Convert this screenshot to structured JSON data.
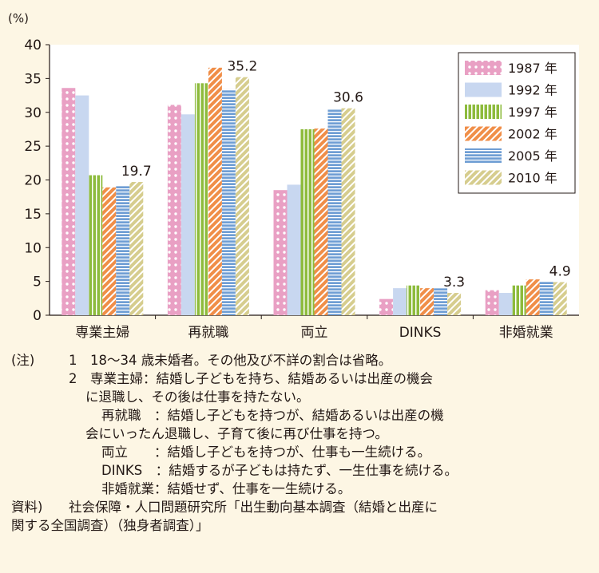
{
  "chart_data": {
    "type": "bar",
    "ylabel": "(%)",
    "ylim": [
      0,
      40
    ],
    "yticks": [
      0,
      5,
      10,
      15,
      20,
      25,
      30,
      35,
      40
    ],
    "grid": false,
    "legend_position": "top-right",
    "categories": [
      "専業主婦",
      "再就職",
      "両立",
      "DINKS",
      "非婚就業"
    ],
    "series": [
      {
        "name": "1987 年",
        "color": "#e9a0c4",
        "pattern": "dots",
        "values": [
          33.6,
          31.1,
          18.5,
          2.4,
          3.7
        ]
      },
      {
        "name": "1992 年",
        "color": "#c8d7f0",
        "pattern": "solid",
        "values": [
          32.5,
          29.7,
          19.3,
          4.0,
          3.3
        ]
      },
      {
        "name": "1997 年",
        "color": "#8dbb3c",
        "pattern": "vstripe",
        "values": [
          20.7,
          34.3,
          27.5,
          4.4,
          4.4
        ]
      },
      {
        "name": "2002 年",
        "color": "#f08e48",
        "pattern": "diag",
        "values": [
          18.9,
          36.6,
          27.6,
          4.0,
          5.3
        ]
      },
      {
        "name": "2005 年",
        "color": "#6f9ed4",
        "pattern": "hstripe",
        "values": [
          19.1,
          33.4,
          30.4,
          4.0,
          5.0
        ]
      },
      {
        "name": "2010 年",
        "color": "#d6cd8e",
        "pattern": "diag",
        "values": [
          19.7,
          35.2,
          30.6,
          3.3,
          4.9
        ]
      }
    ],
    "annotations": [
      {
        "category_index": 0,
        "series_index": 5,
        "text": "19.7"
      },
      {
        "category_index": 1,
        "series_index": 5,
        "text": "35.2"
      },
      {
        "category_index": 2,
        "series_index": 5,
        "text": "30.6"
      },
      {
        "category_index": 3,
        "series_index": 5,
        "text": "3.3"
      },
      {
        "category_index": 4,
        "series_index": 5,
        "text": "4.9"
      }
    ]
  },
  "notes": {
    "note_label": "(注)",
    "line1": "1　18〜34 歳未婚者。その他及び不詳の割合は省略。",
    "line2a": "2　専業主婦：結婚し子どもを持ち、結婚あるいは出産の機会",
    "line2b": "に退職し、その後は仕事を持たない。",
    "line3a": "再就職　：結婚し子どもを持つが、結婚あるいは出産の機",
    "line3b": "会にいったん退職し、子育て後に再び仕事を持つ。",
    "line4": "両立　　：結婚し子どもを持つが、仕事も一生続ける。",
    "line5": "DINKS　：結婚するが子どもは持たず、一生仕事を続ける。",
    "line6": "非婚就業：結婚せず、仕事を一生続ける。",
    "source_label": "資料)",
    "source_a": "社会保障・人口問題研究所「出生動向基本調査（結婚と出産に",
    "source_b": "関する全国調査）（独身者調査）」"
  }
}
